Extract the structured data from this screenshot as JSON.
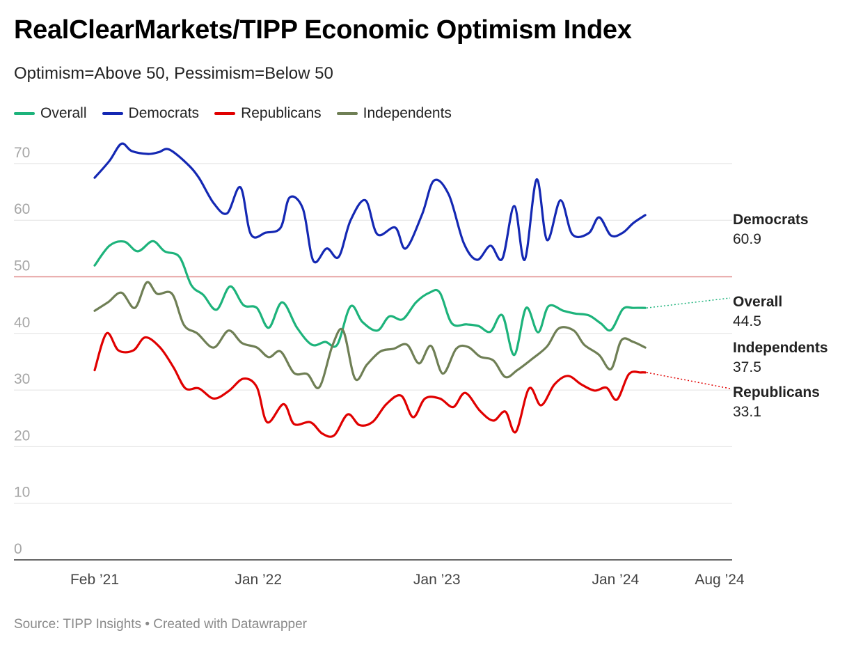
{
  "title": "RealClearMarkets/TIPP Economic Optimism Index",
  "subtitle": "Optimism=Above 50, Pessimism=Below 50",
  "source": "Source: TIPP Insights • Created with Datawrapper",
  "colors": {
    "overall": "#1db37b",
    "democrats": "#1428b3",
    "republicans": "#e00000",
    "independents": "#6f7f55",
    "reference": "#e08a8a",
    "grid": "#e2e2e2"
  },
  "legend": [
    {
      "label": "Overall",
      "color": "#1db37b"
    },
    {
      "label": "Democrats",
      "color": "#1428b3"
    },
    {
      "label": "Republicans",
      "color": "#e00000"
    },
    {
      "label": "Independents",
      "color": "#6f7f55"
    }
  ],
  "chart_data": {
    "type": "line",
    "x_axis": {
      "tick_labels": [
        "Feb ’21",
        "Jan ’22",
        "Jan ’23",
        "Jan ’24",
        "Aug ’24"
      ],
      "tick_months": [
        0,
        11,
        23,
        35,
        42
      ],
      "range_months": [
        0,
        42
      ],
      "start": "Feb 2021",
      "end": "Aug 2024"
    },
    "y_axis": {
      "ticks": [
        0,
        10,
        20,
        30,
        40,
        50,
        60,
        70
      ],
      "ylim": [
        0,
        72
      ]
    },
    "reference_line": 50,
    "grid": true,
    "series": [
      {
        "name": "Democrats",
        "key": "democrats",
        "end_label": "60.9",
        "points": [
          [
            0.0,
            67.5
          ],
          [
            1.0,
            70.5
          ],
          [
            1.8,
            73.5
          ],
          [
            2.5,
            72.2
          ],
          [
            3.6,
            71.7
          ],
          [
            4.3,
            72.0
          ],
          [
            5.0,
            72.5
          ],
          [
            6.2,
            70.0
          ],
          [
            7.0,
            67.5
          ],
          [
            8.0,
            63.0
          ],
          [
            8.9,
            61.2
          ],
          [
            9.8,
            65.8
          ],
          [
            10.5,
            57.5
          ],
          [
            11.5,
            57.8
          ],
          [
            12.5,
            58.7
          ],
          [
            13.1,
            64.0
          ],
          [
            14.0,
            62.0
          ],
          [
            14.7,
            52.8
          ],
          [
            15.6,
            55.0
          ],
          [
            16.4,
            53.5
          ],
          [
            17.2,
            60.0
          ],
          [
            18.2,
            63.5
          ],
          [
            19.0,
            57.5
          ],
          [
            20.2,
            58.7
          ],
          [
            20.9,
            55.0
          ],
          [
            22.0,
            61.0
          ],
          [
            22.8,
            67.0
          ],
          [
            23.8,
            64.5
          ],
          [
            24.8,
            56.0
          ],
          [
            25.7,
            53.0
          ],
          [
            26.6,
            55.5
          ],
          [
            27.4,
            53.2
          ],
          [
            28.2,
            62.5
          ],
          [
            28.9,
            53.0
          ],
          [
            29.7,
            67.2
          ],
          [
            30.4,
            56.5
          ],
          [
            31.3,
            63.5
          ],
          [
            32.1,
            57.5
          ],
          [
            33.2,
            57.7
          ],
          [
            33.9,
            60.5
          ],
          [
            34.7,
            57.3
          ],
          [
            35.5,
            57.8
          ],
          [
            36.2,
            59.5
          ],
          [
            37.0,
            60.9
          ]
        ]
      },
      {
        "name": "Overall",
        "key": "overall",
        "end_label": "44.5",
        "points": [
          [
            0.0,
            52.0
          ],
          [
            1.0,
            55.5
          ],
          [
            2.0,
            56.2
          ],
          [
            2.9,
            54.5
          ],
          [
            3.9,
            56.3
          ],
          [
            4.7,
            54.5
          ],
          [
            5.7,
            53.5
          ],
          [
            6.5,
            48.5
          ],
          [
            7.3,
            46.8
          ],
          [
            8.2,
            44.2
          ],
          [
            9.1,
            48.3
          ],
          [
            10.0,
            45.0
          ],
          [
            10.9,
            44.5
          ],
          [
            11.7,
            41.0
          ],
          [
            12.6,
            45.5
          ],
          [
            13.6,
            41.0
          ],
          [
            14.6,
            38.0
          ],
          [
            15.5,
            38.5
          ],
          [
            16.3,
            38.0
          ],
          [
            17.2,
            44.8
          ],
          [
            18.0,
            42.0
          ],
          [
            19.0,
            40.5
          ],
          [
            19.8,
            43.0
          ],
          [
            20.7,
            42.5
          ],
          [
            21.6,
            45.5
          ],
          [
            22.5,
            47.2
          ],
          [
            23.2,
            47.2
          ],
          [
            24.0,
            41.8
          ],
          [
            25.0,
            41.6
          ],
          [
            25.8,
            41.3
          ],
          [
            26.6,
            40.3
          ],
          [
            27.4,
            43.2
          ],
          [
            28.2,
            36.2
          ],
          [
            29.0,
            44.5
          ],
          [
            29.8,
            40.2
          ],
          [
            30.5,
            44.8
          ],
          [
            31.5,
            44.0
          ],
          [
            32.3,
            43.5
          ],
          [
            33.2,
            43.2
          ],
          [
            34.0,
            41.8
          ],
          [
            34.7,
            40.6
          ],
          [
            35.5,
            44.3
          ],
          [
            36.2,
            44.5
          ],
          [
            37.0,
            44.5
          ]
        ]
      },
      {
        "name": "Independents",
        "key": "independents",
        "end_label": "37.5",
        "points": [
          [
            0.0,
            44.0
          ],
          [
            0.9,
            45.5
          ],
          [
            1.8,
            47.2
          ],
          [
            2.7,
            44.5
          ],
          [
            3.5,
            49.0
          ],
          [
            4.2,
            47.0
          ],
          [
            5.2,
            47.0
          ],
          [
            6.0,
            41.5
          ],
          [
            6.9,
            40.0
          ],
          [
            8.0,
            37.5
          ],
          [
            9.0,
            40.5
          ],
          [
            9.9,
            38.3
          ],
          [
            10.9,
            37.5
          ],
          [
            11.7,
            35.8
          ],
          [
            12.5,
            36.8
          ],
          [
            13.4,
            33.0
          ],
          [
            14.3,
            32.8
          ],
          [
            15.1,
            30.5
          ],
          [
            16.0,
            38.0
          ],
          [
            16.7,
            40.5
          ],
          [
            17.5,
            32.0
          ],
          [
            18.3,
            34.5
          ],
          [
            19.2,
            36.8
          ],
          [
            20.1,
            37.3
          ],
          [
            21.0,
            38.0
          ],
          [
            21.8,
            34.7
          ],
          [
            22.6,
            37.8
          ],
          [
            23.4,
            32.9
          ],
          [
            24.3,
            37.3
          ],
          [
            25.1,
            37.6
          ],
          [
            25.9,
            35.9
          ],
          [
            26.8,
            35.2
          ],
          [
            27.6,
            32.3
          ],
          [
            28.4,
            33.5
          ],
          [
            29.4,
            35.5
          ],
          [
            30.4,
            37.7
          ],
          [
            31.2,
            40.9
          ],
          [
            32.2,
            40.5
          ],
          [
            32.9,
            38.0
          ],
          [
            33.9,
            36.2
          ],
          [
            34.7,
            33.7
          ],
          [
            35.4,
            38.8
          ],
          [
            36.2,
            38.5
          ],
          [
            37.0,
            37.5
          ]
        ]
      },
      {
        "name": "Republicans",
        "key": "republicans",
        "end_label": "33.1",
        "points": [
          [
            0.0,
            33.5
          ],
          [
            0.8,
            40.0
          ],
          [
            1.6,
            37.0
          ],
          [
            2.6,
            37.0
          ],
          [
            3.4,
            39.3
          ],
          [
            4.4,
            37.5
          ],
          [
            5.3,
            34.0
          ],
          [
            6.1,
            30.3
          ],
          [
            7.0,
            30.3
          ],
          [
            8.0,
            28.5
          ],
          [
            9.0,
            29.8
          ],
          [
            10.0,
            32.0
          ],
          [
            10.9,
            30.5
          ],
          [
            11.6,
            24.3
          ],
          [
            12.7,
            27.5
          ],
          [
            13.4,
            24.0
          ],
          [
            14.5,
            24.3
          ],
          [
            15.3,
            22.3
          ],
          [
            16.1,
            22.0
          ],
          [
            17.0,
            25.7
          ],
          [
            17.8,
            23.8
          ],
          [
            18.7,
            24.4
          ],
          [
            19.6,
            27.5
          ],
          [
            20.6,
            29.0
          ],
          [
            21.4,
            25.2
          ],
          [
            22.2,
            28.5
          ],
          [
            23.2,
            28.5
          ],
          [
            24.1,
            27.0
          ],
          [
            24.9,
            29.5
          ],
          [
            25.9,
            26.3
          ],
          [
            26.8,
            24.6
          ],
          [
            27.6,
            26.2
          ],
          [
            28.3,
            22.6
          ],
          [
            29.2,
            30.3
          ],
          [
            30.0,
            27.3
          ],
          [
            30.9,
            31.0
          ],
          [
            31.8,
            32.5
          ],
          [
            32.7,
            31.0
          ],
          [
            33.6,
            29.9
          ],
          [
            34.4,
            30.4
          ],
          [
            35.1,
            28.3
          ],
          [
            35.9,
            32.8
          ],
          [
            36.7,
            33.1
          ],
          [
            37.0,
            33.1
          ]
        ]
      }
    ]
  }
}
